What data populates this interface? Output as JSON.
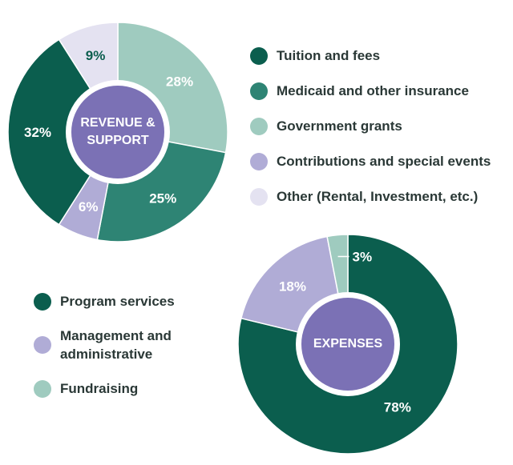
{
  "chart_data": [
    {
      "type": "pie",
      "center_label": "REVENUE & SUPPORT",
      "categories": [
        "Tuition and fees",
        "Medicaid and other insurance",
        "Government grants",
        "Contributions and special events",
        "Other (Rental, Investment, etc.)"
      ],
      "values": [
        32,
        25,
        28,
        6,
        9
      ],
      "value_labels": [
        "32%",
        "25%",
        "28%",
        "6%",
        "9%"
      ],
      "colors": [
        "#0b5e4e",
        "#2e8474",
        "#9fcbbf",
        "#b0acd6",
        "#e4e2f1"
      ]
    },
    {
      "type": "pie",
      "center_label": "EXPENSES",
      "categories": [
        "Program services",
        "Management and administrative",
        "Fundraising"
      ],
      "values": [
        78,
        18,
        3
      ],
      "value_labels": [
        "78%",
        "18%",
        "3%"
      ],
      "colors": [
        "#0b5e4e",
        "#b0acd6",
        "#9fcbbf"
      ]
    }
  ]
}
